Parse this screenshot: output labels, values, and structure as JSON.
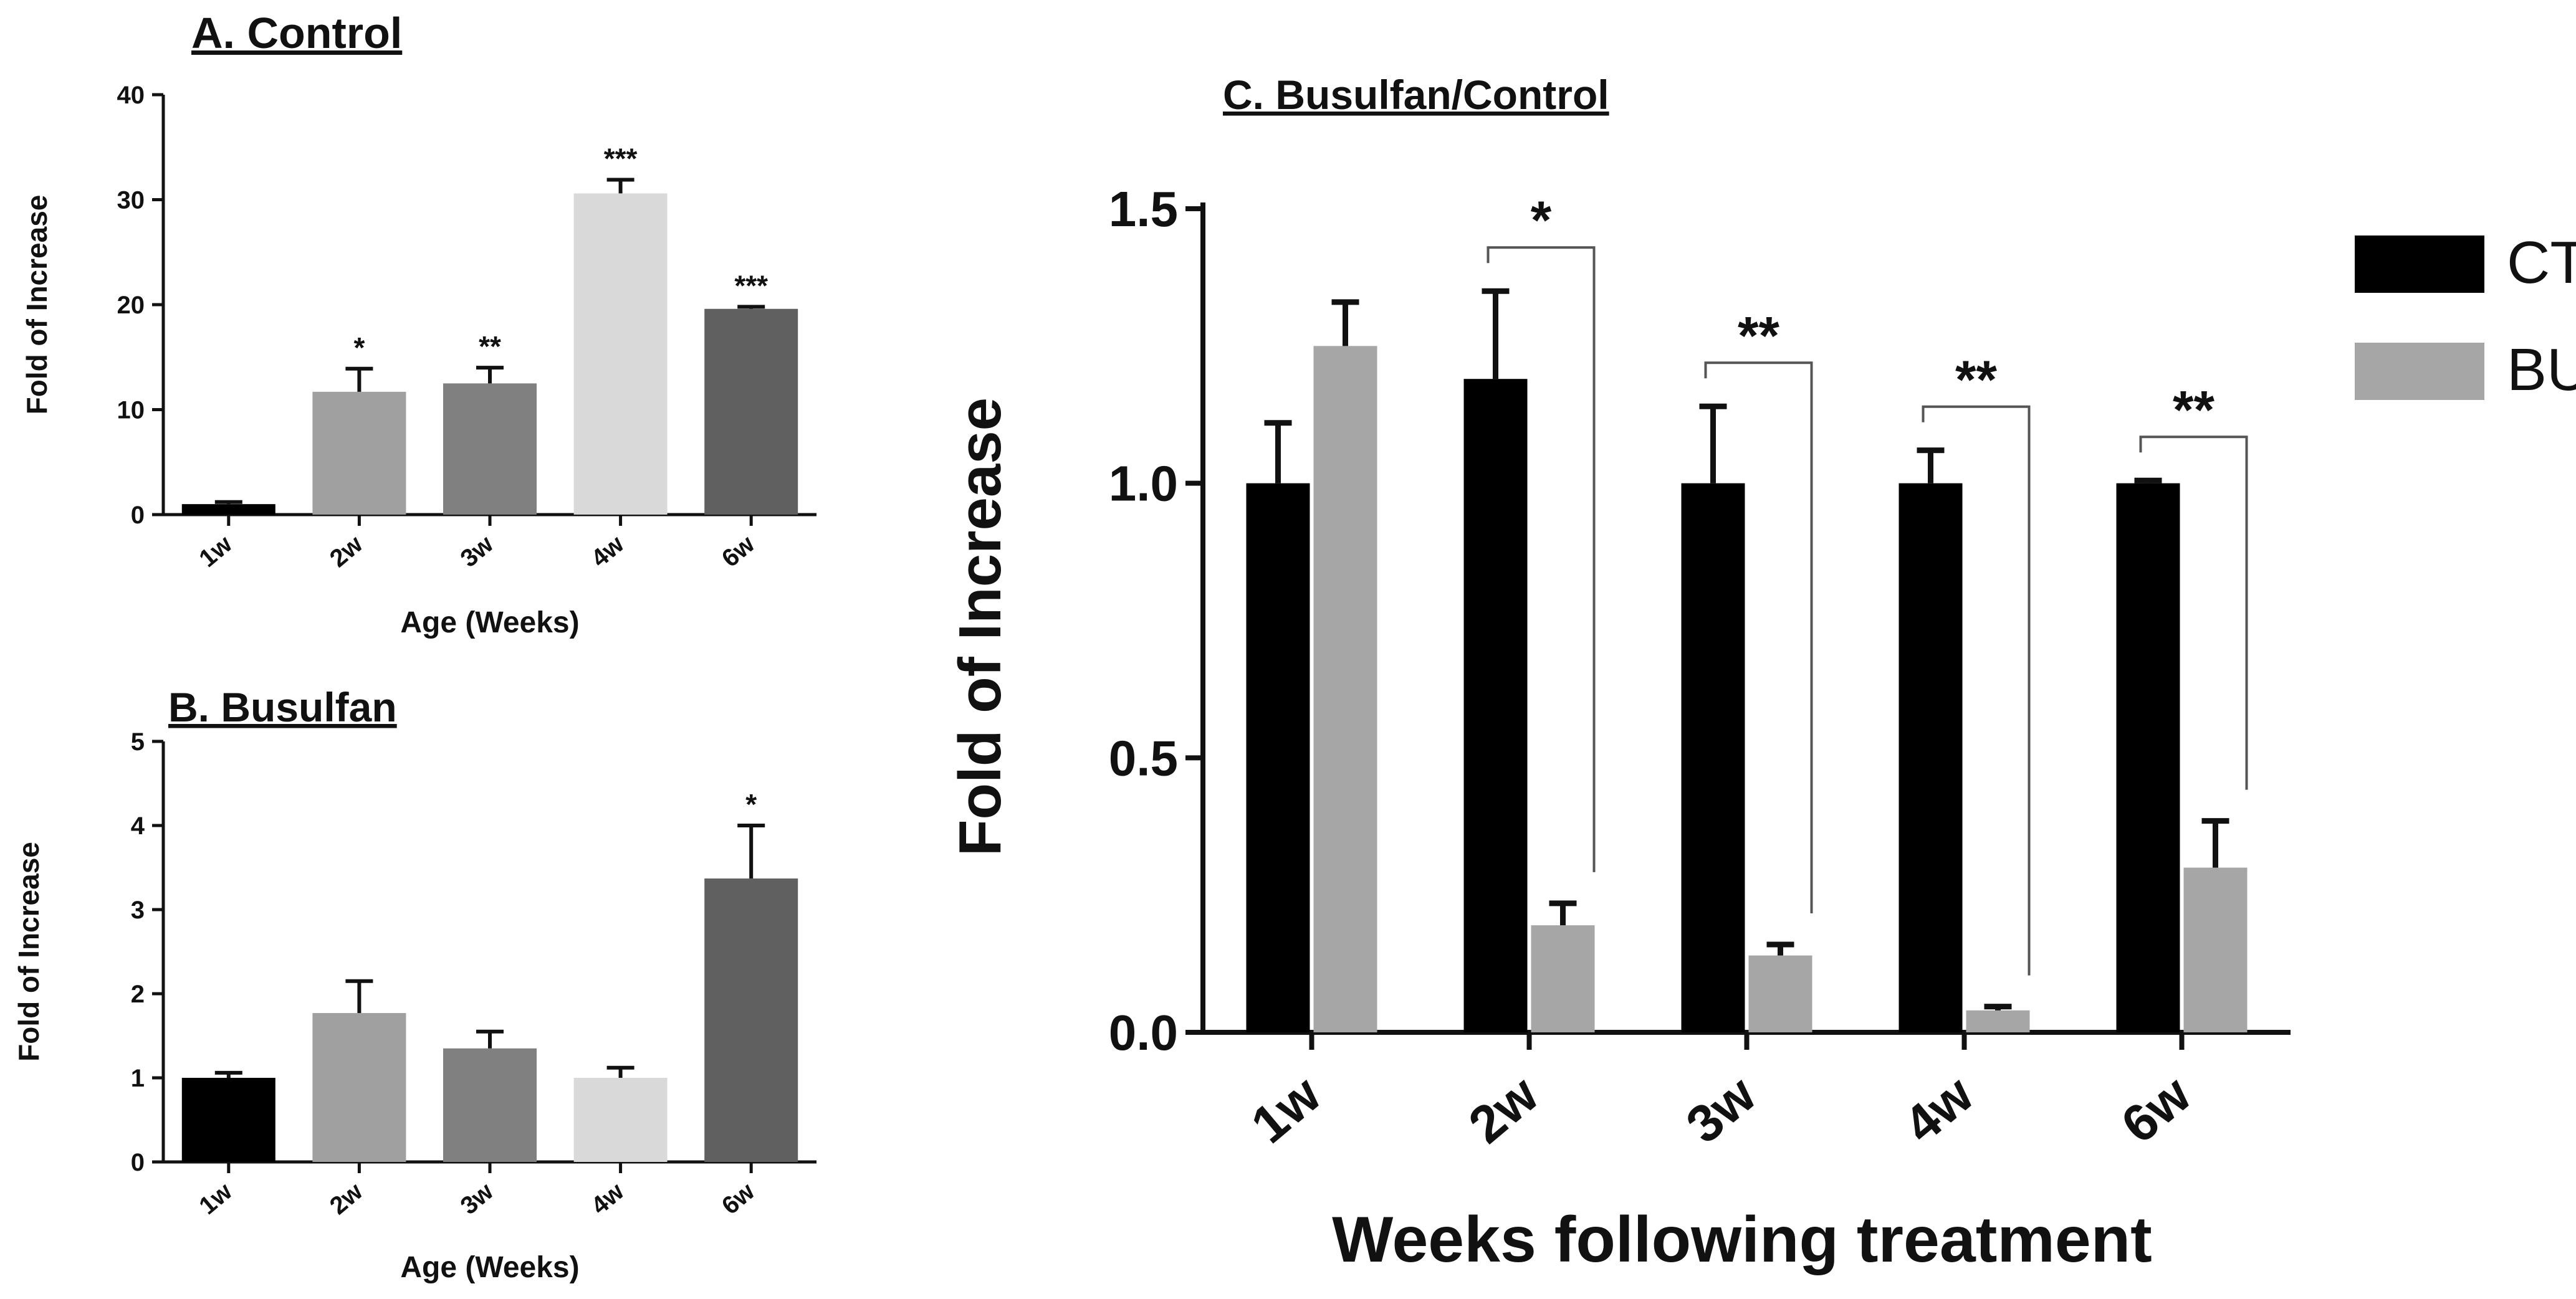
{
  "chart_data": [
    {
      "id": "A",
      "type": "bar",
      "title": "A. Control",
      "xlabel": "Age (Weeks)",
      "ylabel": "Fold of Increase",
      "ylim": [
        0,
        40
      ],
      "yticks": [
        0,
        10,
        20,
        30,
        40
      ],
      "categories": [
        "1w",
        "2w",
        "3w",
        "4w",
        "6w"
      ],
      "values": [
        1,
        11.7,
        12.5,
        30.6,
        19.6
      ],
      "errors": [
        0.2,
        2.2,
        1.5,
        1.3,
        0.2
      ],
      "significance": [
        "",
        "*",
        "**",
        "***",
        "***"
      ],
      "colors": [
        "#000000",
        "#a0a0a0",
        "#808080",
        "#d9d9d9",
        "#606060"
      ]
    },
    {
      "id": "B",
      "type": "bar",
      "title": "B. Busulfan",
      "xlabel": "Age (Weeks)",
      "ylabel": "Fold of Increase",
      "ylim": [
        0,
        5
      ],
      "yticks": [
        0,
        1,
        2,
        3,
        4,
        5
      ],
      "categories": [
        "1w",
        "2w",
        "3w",
        "4w",
        "6w"
      ],
      "values": [
        1.0,
        1.77,
        1.35,
        1.0,
        3.37
      ],
      "errors": [
        0.06,
        0.38,
        0.2,
        0.12,
        0.63
      ],
      "significance": [
        "",
        "",
        "",
        "",
        "*"
      ],
      "colors": [
        "#000000",
        "#a0a0a0",
        "#808080",
        "#d9d9d9",
        "#606060"
      ]
    },
    {
      "id": "C",
      "type": "bar",
      "title": "C. Busulfan/Control",
      "xlabel": "Weeks following treatment",
      "ylabel": "Fold of Increase",
      "ylim": [
        0,
        1.5
      ],
      "yticks": [
        "0.0",
        "0.5",
        "1.0",
        "1.5"
      ],
      "categories": [
        "1w",
        "2w",
        "3w",
        "4w",
        "6w"
      ],
      "series": [
        {
          "name": "CT",
          "color": "#000000",
          "values": [
            1.0,
            1.19,
            1.0,
            1.0,
            1.0
          ],
          "errors": [
            0.11,
            0.16,
            0.14,
            0.06,
            0.005
          ]
        },
        {
          "name": "BU",
          "color": "#a6a6a6",
          "values": [
            1.25,
            0.195,
            0.14,
            0.04,
            0.3
          ],
          "errors": [
            0.08,
            0.04,
            0.02,
            0.007,
            0.085
          ]
        }
      ],
      "significance": [
        "",
        "*",
        "**",
        "**",
        "**"
      ],
      "legend_position": "top-right"
    }
  ]
}
